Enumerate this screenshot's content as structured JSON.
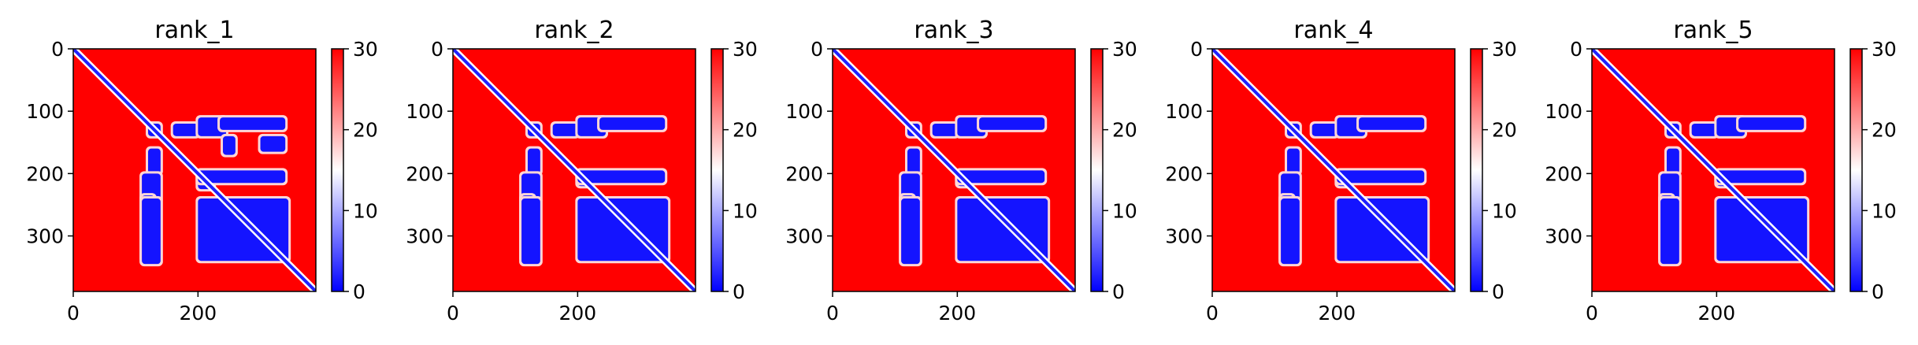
{
  "chart_data": [
    {
      "type": "heatmap",
      "title": "rank_1",
      "xticks": [
        "0",
        "200"
      ],
      "yticks": [
        "0",
        "100",
        "200",
        "300"
      ],
      "cbar_ticks": [
        "0",
        "10",
        "20",
        "30"
      ],
      "vmin": 0,
      "vmax": 30,
      "colormap": "bwr",
      "n": 389,
      "blocks": [
        [
          120,
          140,
          120,
          140
        ],
        [
          120,
          140,
          160,
          200
        ],
        [
          160,
          200,
          120,
          140
        ],
        [
          200,
          220,
          200,
          220
        ],
        [
          110,
          140,
          200,
          245
        ],
        [
          200,
          245,
          110,
          140
        ],
        [
          200,
          225,
          200,
          225
        ],
        [
          110,
          130,
          235,
          340
        ],
        [
          235,
          340,
          110,
          130
        ],
        [
          195,
          215,
          200,
          340
        ],
        [
          240,
          340,
          200,
          345
        ],
        [
          140,
          170,
          240,
          260
        ],
        [
          140,
          165,
          300,
          340
        ],
        [
          240,
          345,
          110,
          140
        ]
      ]
    },
    {
      "type": "heatmap",
      "title": "rank_2",
      "xticks": [
        "0",
        "200"
      ],
      "yticks": [
        "0",
        "100",
        "200",
        "300"
      ],
      "cbar_ticks": [
        "0",
        "10",
        "20",
        "30"
      ],
      "vmin": 0,
      "vmax": 30,
      "colormap": "bwr",
      "n": 389,
      "blocks": [
        [
          120,
          140,
          120,
          140
        ],
        [
          120,
          140,
          160,
          200
        ],
        [
          160,
          200,
          120,
          140
        ],
        [
          200,
          220,
          200,
          220
        ],
        [
          110,
          140,
          200,
          245
        ],
        [
          200,
          245,
          110,
          140
        ],
        [
          110,
          130,
          235,
          340
        ],
        [
          235,
          340,
          110,
          130
        ],
        [
          195,
          215,
          200,
          340
        ],
        [
          240,
          340,
          200,
          345
        ],
        [
          240,
          345,
          110,
          140
        ]
      ]
    },
    {
      "type": "heatmap",
      "title": "rank_3",
      "xticks": [
        "0",
        "200"
      ],
      "yticks": [
        "0",
        "100",
        "200",
        "300"
      ],
      "cbar_ticks": [
        "0",
        "10",
        "20",
        "30"
      ],
      "vmin": 0,
      "vmax": 30,
      "colormap": "bwr",
      "n": 389,
      "blocks": [
        [
          120,
          140,
          120,
          140
        ],
        [
          120,
          140,
          160,
          200
        ],
        [
          160,
          200,
          120,
          140
        ],
        [
          200,
          220,
          200,
          220
        ],
        [
          110,
          140,
          200,
          245
        ],
        [
          200,
          245,
          110,
          140
        ],
        [
          110,
          130,
          235,
          340
        ],
        [
          235,
          340,
          110,
          130
        ],
        [
          195,
          215,
          200,
          340
        ],
        [
          240,
          340,
          200,
          345
        ],
        [
          240,
          345,
          110,
          140
        ]
      ]
    },
    {
      "type": "heatmap",
      "title": "rank_4",
      "xticks": [
        "0",
        "200"
      ],
      "yticks": [
        "0",
        "100",
        "200",
        "300"
      ],
      "cbar_ticks": [
        "0",
        "10",
        "20",
        "30"
      ],
      "vmin": 0,
      "vmax": 30,
      "colormap": "bwr",
      "n": 389,
      "blocks": [
        [
          120,
          140,
          120,
          140
        ],
        [
          120,
          140,
          160,
          200
        ],
        [
          160,
          200,
          120,
          140
        ],
        [
          200,
          220,
          200,
          220
        ],
        [
          110,
          140,
          200,
          245
        ],
        [
          200,
          245,
          110,
          140
        ],
        [
          110,
          130,
          235,
          340
        ],
        [
          235,
          340,
          110,
          130
        ],
        [
          195,
          215,
          200,
          340
        ],
        [
          240,
          340,
          200,
          345
        ],
        [
          240,
          345,
          110,
          140
        ]
      ]
    },
    {
      "type": "heatmap",
      "title": "rank_5",
      "xticks": [
        "0",
        "200"
      ],
      "yticks": [
        "0",
        "100",
        "200",
        "300"
      ],
      "cbar_ticks": [
        "0",
        "10",
        "20",
        "30"
      ],
      "vmin": 0,
      "vmax": 30,
      "colormap": "bwr",
      "n": 389,
      "blocks": [
        [
          120,
          140,
          120,
          140
        ],
        [
          120,
          140,
          160,
          200
        ],
        [
          160,
          200,
          120,
          140
        ],
        [
          200,
          220,
          200,
          220
        ],
        [
          110,
          140,
          200,
          245
        ],
        [
          200,
          245,
          110,
          140
        ],
        [
          110,
          130,
          235,
          340
        ],
        [
          235,
          340,
          110,
          130
        ],
        [
          195,
          215,
          200,
          340
        ],
        [
          240,
          340,
          200,
          345
        ],
        [
          240,
          345,
          110,
          140
        ]
      ]
    }
  ],
  "colors": {
    "low": "#0000ff",
    "mid": "#ffffff",
    "high": "#ff0000",
    "axis": "#000000"
  }
}
